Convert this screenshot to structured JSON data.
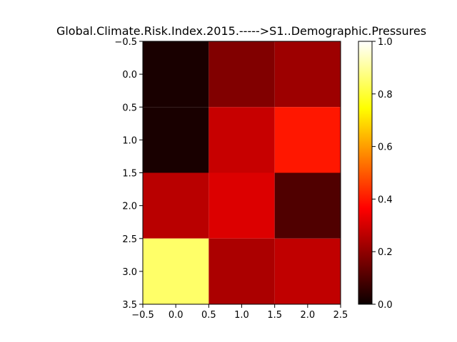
{
  "chart_data": {
    "type": "heatmap",
    "title": "Global.Climate.Risk.Index.2015.----->S1..Demographic.Pressures",
    "colormap": "hot",
    "grid": false,
    "xlim": [
      -0.5,
      2.5
    ],
    "ylim": [
      3.5,
      -0.5
    ],
    "x_ticks": [
      -0.5,
      0.0,
      0.5,
      1.0,
      1.5,
      2.0,
      2.5
    ],
    "x_tick_labels": [
      "−0.5",
      "0.0",
      "0.5",
      "1.0",
      "1.5",
      "2.0",
      "2.5"
    ],
    "y_ticks": [
      -0.5,
      0.0,
      0.5,
      1.0,
      1.5,
      2.0,
      2.5,
      3.0,
      3.5
    ],
    "y_tick_labels": [
      "−0.5",
      "0.0",
      "0.5",
      "1.0",
      "1.5",
      "2.0",
      "2.5",
      "3.0",
      "3.5"
    ],
    "values": [
      [
        0.02,
        0.17,
        0.21
      ],
      [
        0.02,
        0.27,
        0.4
      ],
      [
        0.25,
        0.3,
        0.1
      ],
      [
        0.85,
        0.23,
        0.26
      ]
    ],
    "colorbar": {
      "range": [
        0.0,
        1.0
      ],
      "ticks": [
        0.0,
        0.2,
        0.4,
        0.6,
        0.8,
        1.0
      ],
      "tick_labels": [
        "0.0",
        "0.2",
        "0.4",
        "0.6",
        "0.8",
        "1.0"
      ]
    }
  }
}
